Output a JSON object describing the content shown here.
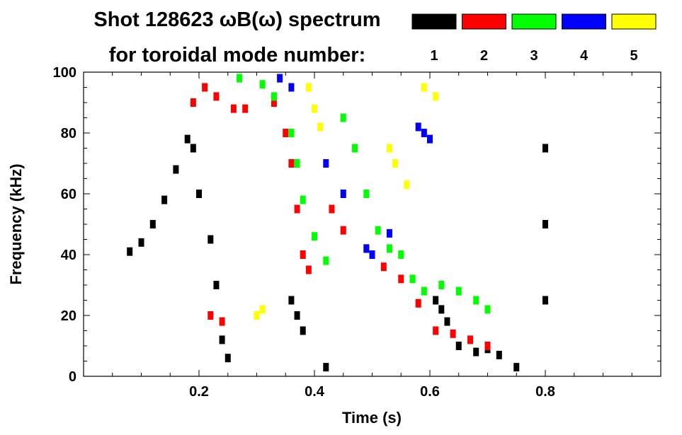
{
  "title_line1": "Shot 128623 ωB(ω) spectrum",
  "title_line2": "for toroidal mode number:",
  "chart_data": {
    "type": "scatter",
    "xlabel": "Time (s)",
    "ylabel": "Frequency (kHz)",
    "xlim": [
      0.0,
      1.0
    ],
    "ylim": [
      0,
      100
    ],
    "x_ticks": [
      "0.2",
      "0.4",
      "0.6",
      "0.8"
    ],
    "y_ticks": [
      "0",
      "20",
      "40",
      "60",
      "80",
      "100"
    ],
    "grid": false,
    "legend_position": "top-right",
    "legend": [
      {
        "label": "1",
        "color": "#000000"
      },
      {
        "label": "2",
        "color": "#ff0000"
      },
      {
        "label": "3",
        "color": "#00ff00"
      },
      {
        "label": "4",
        "color": "#0000ff"
      },
      {
        "label": "5",
        "color": "#ffff00"
      }
    ],
    "series": [
      {
        "mode": 1,
        "color": "#000000",
        "points": [
          [
            0.08,
            41
          ],
          [
            0.1,
            44
          ],
          [
            0.12,
            50
          ],
          [
            0.14,
            58
          ],
          [
            0.16,
            68
          ],
          [
            0.18,
            78
          ],
          [
            0.19,
            75
          ],
          [
            0.2,
            60
          ],
          [
            0.22,
            45
          ],
          [
            0.23,
            30
          ],
          [
            0.24,
            12
          ],
          [
            0.25,
            6
          ],
          [
            0.36,
            25
          ],
          [
            0.37,
            20
          ],
          [
            0.38,
            15
          ],
          [
            0.42,
            3
          ],
          [
            0.61,
            25
          ],
          [
            0.62,
            22
          ],
          [
            0.63,
            18
          ],
          [
            0.65,
            10
          ],
          [
            0.68,
            8
          ],
          [
            0.7,
            9
          ],
          [
            0.72,
            7
          ],
          [
            0.75,
            3
          ],
          [
            0.8,
            75
          ],
          [
            0.8,
            50
          ],
          [
            0.8,
            25
          ]
        ]
      },
      {
        "mode": 2,
        "color": "#ff0000",
        "points": [
          [
            0.19,
            90
          ],
          [
            0.21,
            95
          ],
          [
            0.23,
            92
          ],
          [
            0.26,
            88
          ],
          [
            0.28,
            88
          ],
          [
            0.33,
            90
          ],
          [
            0.35,
            80
          ],
          [
            0.36,
            70
          ],
          [
            0.37,
            55
          ],
          [
            0.38,
            40
          ],
          [
            0.39,
            35
          ],
          [
            0.43,
            55
          ],
          [
            0.45,
            48
          ],
          [
            0.49,
            42
          ],
          [
            0.52,
            36
          ],
          [
            0.55,
            32
          ],
          [
            0.58,
            24
          ],
          [
            0.61,
            15
          ],
          [
            0.64,
            14
          ],
          [
            0.67,
            12
          ],
          [
            0.7,
            10
          ],
          [
            0.22,
            20
          ],
          [
            0.24,
            18
          ]
        ]
      },
      {
        "mode": 3,
        "color": "#00ff00",
        "points": [
          [
            0.27,
            98
          ],
          [
            0.31,
            96
          ],
          [
            0.33,
            92
          ],
          [
            0.36,
            80
          ],
          [
            0.37,
            70
          ],
          [
            0.38,
            58
          ],
          [
            0.4,
            46
          ],
          [
            0.42,
            38
          ],
          [
            0.45,
            85
          ],
          [
            0.47,
            75
          ],
          [
            0.49,
            60
          ],
          [
            0.51,
            48
          ],
          [
            0.53,
            42
          ],
          [
            0.55,
            40
          ],
          [
            0.57,
            32
          ],
          [
            0.59,
            28
          ],
          [
            0.62,
            30
          ],
          [
            0.65,
            28
          ],
          [
            0.68,
            25
          ],
          [
            0.7,
            22
          ]
        ]
      },
      {
        "mode": 4,
        "color": "#0000ff",
        "points": [
          [
            0.34,
            98
          ],
          [
            0.36,
            95
          ],
          [
            0.42,
            70
          ],
          [
            0.45,
            60
          ],
          [
            0.49,
            42
          ],
          [
            0.5,
            40
          ],
          [
            0.53,
            47
          ],
          [
            0.58,
            82
          ],
          [
            0.59,
            80
          ],
          [
            0.6,
            78
          ]
        ]
      },
      {
        "mode": 5,
        "color": "#ffff00",
        "points": [
          [
            0.3,
            20
          ],
          [
            0.31,
            22
          ],
          [
            0.39,
            95
          ],
          [
            0.4,
            88
          ],
          [
            0.41,
            82
          ],
          [
            0.53,
            75
          ],
          [
            0.54,
            70
          ],
          [
            0.56,
            63
          ],
          [
            0.59,
            95
          ],
          [
            0.61,
            92
          ]
        ]
      }
    ]
  }
}
